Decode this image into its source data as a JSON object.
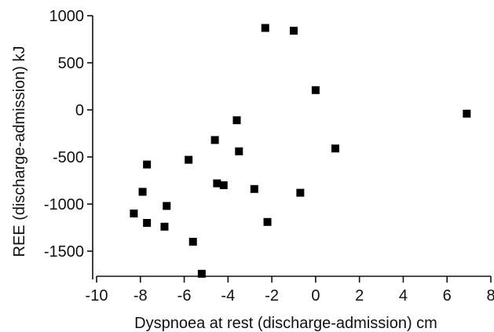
{
  "chart_data": {
    "type": "scatter",
    "title": "",
    "xlabel": "Dyspnoea at rest (discharge-admission) cm",
    "ylabel": "REE (discharge-admission) kJ",
    "xlim": [
      -10,
      8
    ],
    "ylim": [
      -1800,
      1000
    ],
    "x_ticks": [
      -10,
      -8,
      -6,
      -4,
      -2,
      0,
      2,
      4,
      6,
      8
    ],
    "y_ticks": [
      1000,
      500,
      0,
      -500,
      -1000,
      -1500
    ],
    "x_tick_labels": [
      "-10",
      "-8",
      "-6",
      "-4",
      "-2",
      "0",
      "2",
      "4",
      "6",
      "8"
    ],
    "y_tick_labels": [
      "1000",
      "500",
      "0",
      "-500",
      "-1000",
      "-1500"
    ],
    "grid": false,
    "marker": "square",
    "marker_color": "#000000",
    "points": [
      {
        "x": -2.3,
        "y": 870
      },
      {
        "x": -1.0,
        "y": 840
      },
      {
        "x": 0.0,
        "y": 210
      },
      {
        "x": 6.9,
        "y": -40
      },
      {
        "x": -3.6,
        "y": -110
      },
      {
        "x": -4.6,
        "y": -320
      },
      {
        "x": -3.5,
        "y": -440
      },
      {
        "x": 0.9,
        "y": -410
      },
      {
        "x": -5.8,
        "y": -530
      },
      {
        "x": -7.7,
        "y": -580
      },
      {
        "x": -4.5,
        "y": -780
      },
      {
        "x": -4.2,
        "y": -800
      },
      {
        "x": -2.8,
        "y": -840
      },
      {
        "x": -0.7,
        "y": -880
      },
      {
        "x": -7.9,
        "y": -870
      },
      {
        "x": -6.8,
        "y": -1020
      },
      {
        "x": -8.3,
        "y": -1100
      },
      {
        "x": -7.7,
        "y": -1200
      },
      {
        "x": -6.9,
        "y": -1240
      },
      {
        "x": -2.2,
        "y": -1190
      },
      {
        "x": -5.6,
        "y": -1400
      },
      {
        "x": -5.2,
        "y": -1740
      }
    ]
  }
}
